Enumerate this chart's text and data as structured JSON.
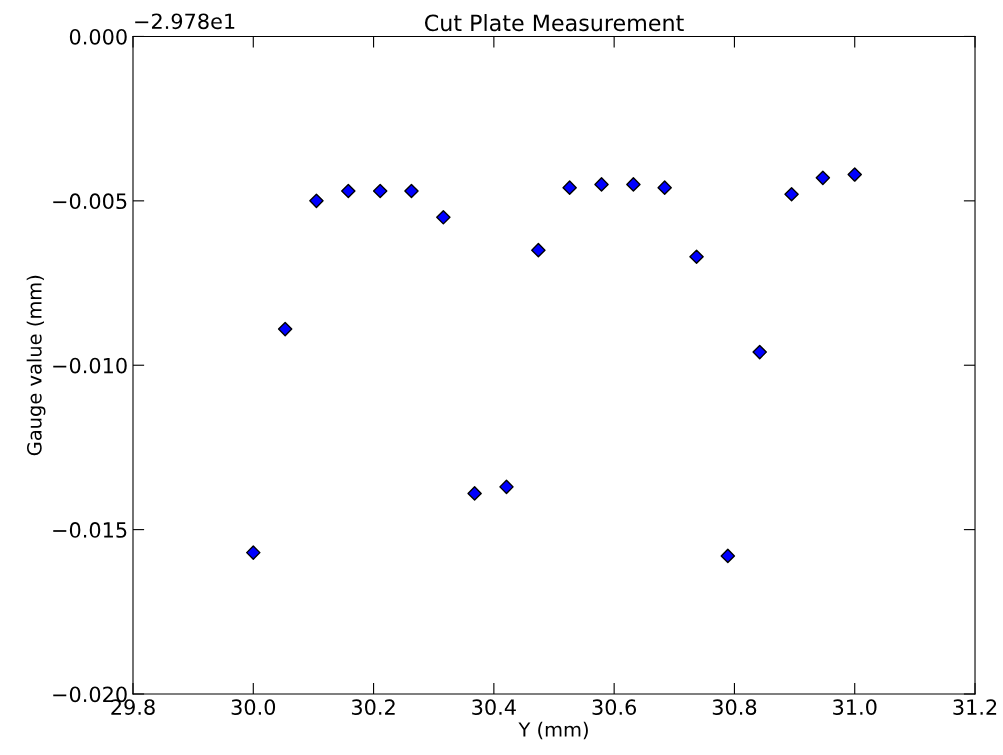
{
  "chart_data": {
    "type": "scatter",
    "title": "Cut Plate Measurement",
    "xlabel": "Y (mm)",
    "ylabel": "Gauge value (mm)",
    "annotations": [
      "−2.978e1"
    ],
    "x": [
      30.0,
      30.053,
      30.105,
      30.158,
      30.211,
      30.263,
      30.316,
      30.368,
      30.421,
      30.474,
      30.526,
      30.579,
      30.632,
      30.684,
      30.737,
      30.789,
      30.842,
      30.895,
      30.947,
      31.0
    ],
    "series": [
      {
        "color": "#0000ff",
        "values": [
          -0.0157,
          -0.0089,
          -0.005,
          -0.0047,
          -0.0047,
          -0.0047,
          -0.0055,
          -0.0139,
          -0.0137,
          -0.0065,
          -0.0046,
          -0.0045,
          -0.0045,
          -0.0046,
          -0.0067,
          -0.0158,
          -0.0096,
          -0.0048,
          -0.0043,
          -0.0042
        ]
      }
    ],
    "xlim": [
      29.8,
      31.2
    ],
    "xticks": [
      29.8,
      {
        "value": 30,
        "label": "30.0"
      },
      30.2,
      30.4,
      30.6,
      30.8,
      {
        "value": 31,
        "label": "31.0"
      },
      31.2
    ],
    "ylim": [
      -0.02,
      0.0
    ],
    "yticks": [
      {
        "value": -0.02,
        "label": "−0.020"
      },
      {
        "value": -0.015,
        "label": "−0.015"
      },
      {
        "value": -0.01,
        "label": "−0.010"
      },
      {
        "value": -0.005,
        "label": "−0.005"
      },
      {
        "value": 0,
        "label": "0.000"
      }
    ],
    "marker": "diamond",
    "grid": false,
    "legend": false
  }
}
